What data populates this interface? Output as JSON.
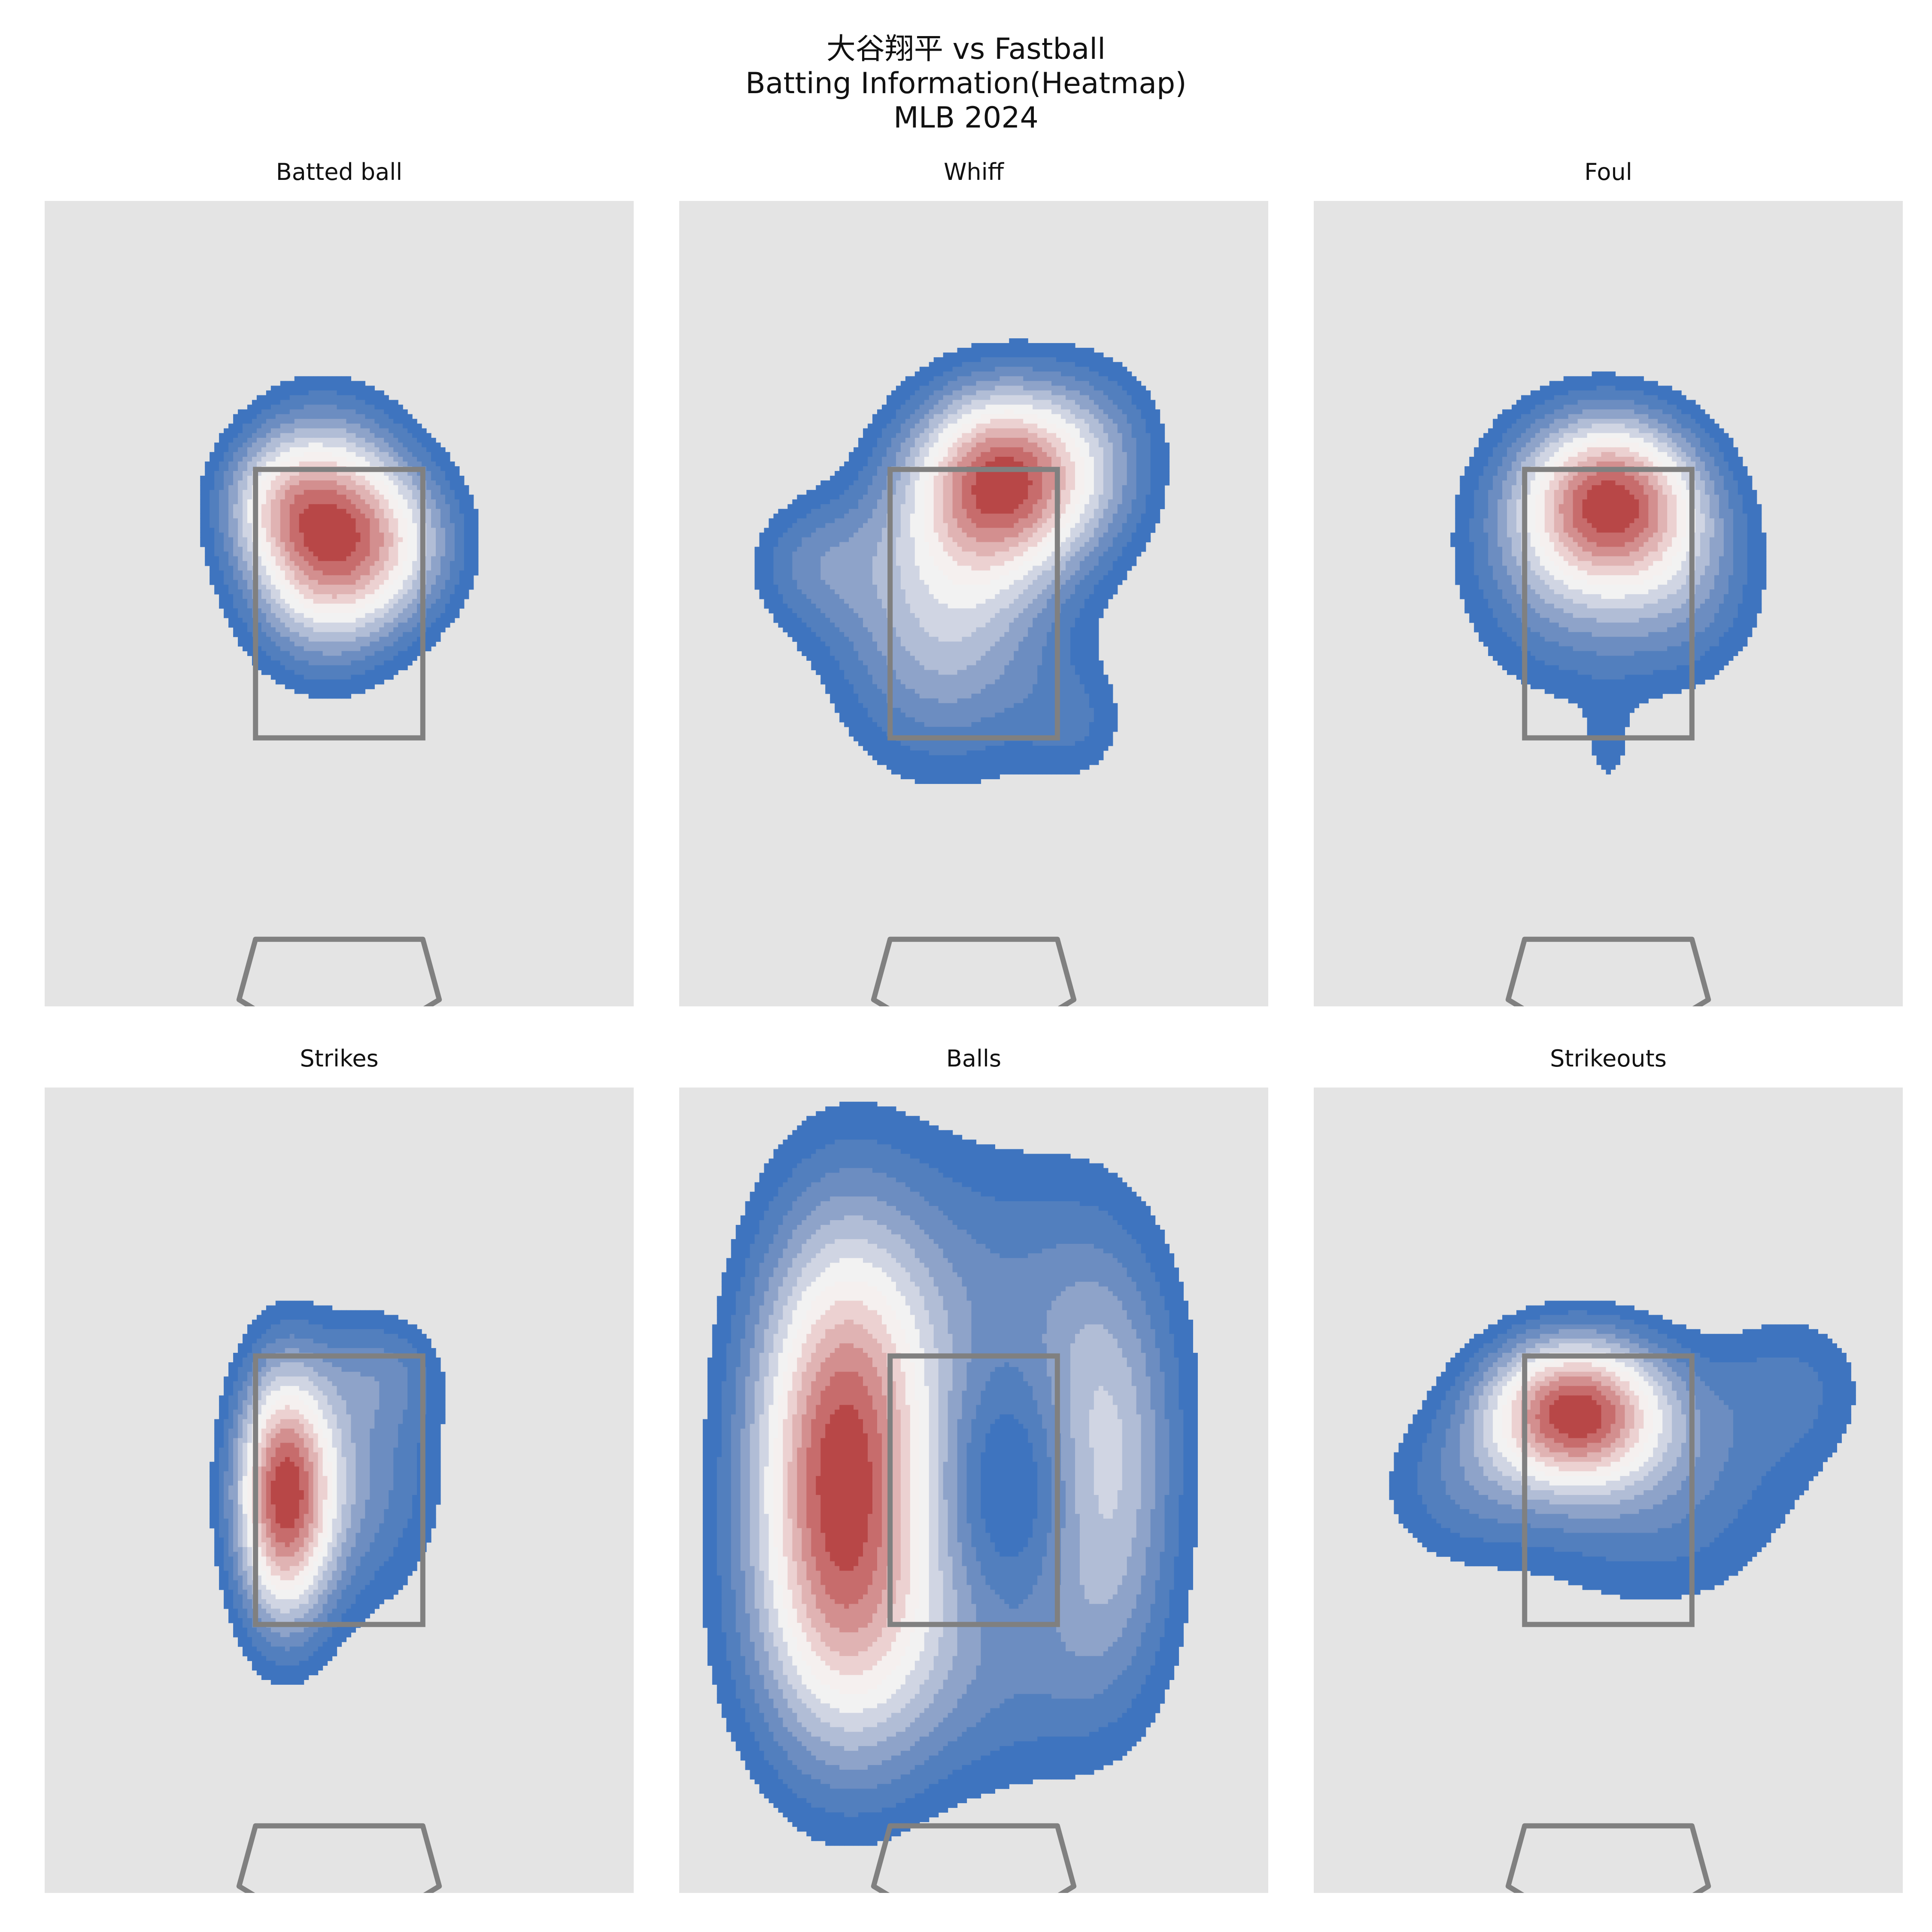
{
  "title": {
    "line1": "大谷翔平 vs Fastball",
    "line2": "Batting Information(Heatmap)",
    "line3": "MLB 2024"
  },
  "colors": {
    "panel_bg": "#e4e4e4",
    "zone_outline": "#808080",
    "levels": [
      "#3e74bf",
      "#527fbe",
      "#6c8dc1",
      "#8ea3c9",
      "#b1bdd6",
      "#d0d5e3",
      "#f2f2f2",
      "#f5f0ef",
      "#ecd1d1",
      "#e0b3b3",
      "#d38f8f",
      "#c76c6c",
      "#b84747"
    ]
  },
  "chart_data": [
    {
      "type": "heatmap",
      "title": "Batted ball",
      "xlim": [
        -2.5,
        2.5
      ],
      "ylim": [
        -0.5,
        5.5
      ],
      "strike_zone": {
        "x": [
          -0.71,
          0.71
        ],
        "y": [
          1.5,
          3.5
        ]
      },
      "blobs": [
        {
          "cx": -0.12,
          "cy": 3.0,
          "sx": 0.5,
          "sy": 0.62,
          "w": 1.0
        },
        {
          "cx": 0.55,
          "cy": 2.95,
          "sx": 0.45,
          "sy": 0.45,
          "w": 0.35
        },
        {
          "cx": -0.6,
          "cy": 3.3,
          "sx": 0.35,
          "sy": 0.35,
          "w": 0.25
        }
      ]
    },
    {
      "type": "heatmap",
      "title": "Whiff",
      "xlim": [
        -2.5,
        2.5
      ],
      "ylim": [
        -0.5,
        5.5
      ],
      "strike_zone": {
        "x": [
          -0.71,
          0.71
        ],
        "y": [
          1.5,
          3.5
        ]
      },
      "blobs": [
        {
          "cx": 0.25,
          "cy": 3.45,
          "sx": 0.55,
          "sy": 0.5,
          "w": 1.0
        },
        {
          "cx": -0.25,
          "cy": 2.4,
          "sx": 0.7,
          "sy": 0.8,
          "w": 0.55
        },
        {
          "cx": -1.4,
          "cy": 2.8,
          "sx": 0.4,
          "sy": 0.35,
          "w": 0.25
        },
        {
          "cx": 1.1,
          "cy": 3.6,
          "sx": 0.45,
          "sy": 0.55,
          "w": 0.25
        },
        {
          "cx": 0.9,
          "cy": 1.6,
          "sx": 0.35,
          "sy": 0.35,
          "w": 0.18
        }
      ]
    },
    {
      "type": "heatmap",
      "title": "Foul",
      "xlim": [
        -2.5,
        2.5
      ],
      "ylim": [
        -0.5,
        5.5
      ],
      "strike_zone": {
        "x": [
          -0.71,
          0.71
        ],
        "y": [
          1.5,
          3.5
        ]
      },
      "blobs": [
        {
          "cx": 0.05,
          "cy": 3.3,
          "sx": 0.55,
          "sy": 0.45,
          "w": 1.0
        },
        {
          "cx": -0.35,
          "cy": 2.8,
          "sx": 0.65,
          "sy": 0.7,
          "w": 0.45
        },
        {
          "cx": 0.7,
          "cy": 2.6,
          "sx": 0.5,
          "sy": 0.55,
          "w": 0.3
        },
        {
          "cx": 0.0,
          "cy": 1.35,
          "sx": 0.18,
          "sy": 0.3,
          "w": 0.15
        }
      ]
    },
    {
      "type": "heatmap",
      "title": "Strikes",
      "xlim": [
        -2.5,
        2.5
      ],
      "ylim": [
        -0.5,
        5.5
      ],
      "strike_zone": {
        "x": [
          -0.71,
          0.71
        ],
        "y": [
          1.5,
          3.5
        ]
      },
      "blobs": [
        {
          "cx": -0.48,
          "cy": 2.45,
          "sx": 0.3,
          "sy": 0.7,
          "w": 1.0
        },
        {
          "cx": 0.15,
          "cy": 2.6,
          "sx": 0.55,
          "sy": 0.75,
          "w": 0.35
        },
        {
          "cx": 0.4,
          "cy": 3.4,
          "sx": 0.35,
          "sy": 0.3,
          "w": 0.18
        }
      ]
    },
    {
      "type": "heatmap",
      "title": "Balls",
      "xlim": [
        -2.5,
        2.5
      ],
      "ylim": [
        -0.5,
        5.5
      ],
      "strike_zone": {
        "x": [
          -0.71,
          0.71
        ],
        "y": [
          1.5,
          3.5
        ]
      },
      "blobs": [
        {
          "cx": -1.15,
          "cy": 2.6,
          "sx": 0.55,
          "sy": 1.3,
          "w": 1.0
        },
        {
          "cx": 1.1,
          "cy": 2.6,
          "sx": 0.45,
          "sy": 1.1,
          "w": 0.48
        },
        {
          "cx": 0.0,
          "cy": 3.6,
          "sx": 1.1,
          "sy": 1.1,
          "w": 0.35
        },
        {
          "cx": -0.3,
          "cy": 1.3,
          "sx": 1.1,
          "sy": 0.8,
          "w": 0.35
        },
        {
          "cx": 0.4,
          "cy": 2.55,
          "sx": 0.45,
          "sy": 0.7,
          "w": -0.28
        }
      ]
    },
    {
      "type": "heatmap",
      "title": "Strikeouts",
      "xlim": [
        -2.5,
        2.5
      ],
      "ylim": [
        -0.5,
        5.5
      ],
      "strike_zone": {
        "x": [
          -0.71,
          0.71
        ],
        "y": [
          1.5,
          3.5
        ]
      },
      "blobs": [
        {
          "cx": -0.3,
          "cy": 3.1,
          "sx": 0.55,
          "sy": 0.4,
          "w": 1.0
        },
        {
          "cx": 0.4,
          "cy": 2.5,
          "sx": 0.9,
          "sy": 0.7,
          "w": 0.3
        },
        {
          "cx": -1.3,
          "cy": 2.5,
          "sx": 0.55,
          "sy": 0.45,
          "w": 0.22
        },
        {
          "cx": 1.6,
          "cy": 3.3,
          "sx": 0.5,
          "sy": 0.45,
          "w": 0.2
        }
      ]
    }
  ]
}
